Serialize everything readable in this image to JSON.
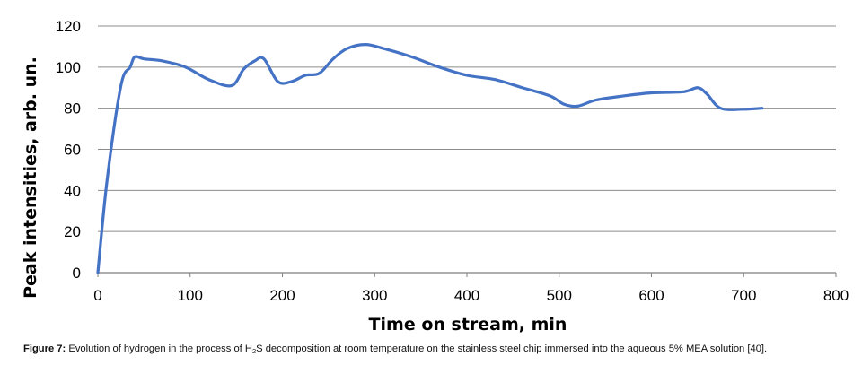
{
  "chart_data": {
    "type": "line",
    "title": "",
    "xlabel": "Time on stream, min",
    "ylabel": "Peak intensities, arb. un.",
    "xlim": [
      0,
      800
    ],
    "ylim": [
      0,
      120
    ],
    "xticks": [
      0,
      100,
      200,
      300,
      400,
      500,
      600,
      700,
      800
    ],
    "yticks": [
      0,
      20,
      40,
      60,
      80,
      100,
      120
    ],
    "grid": "horizontal",
    "legend": "none",
    "line_color": "#4472C4",
    "series": [
      {
        "x": [
          0,
          10,
          25,
          35,
          40,
          50,
          70,
          95,
          120,
          145,
          158,
          170,
          180,
          195,
          210,
          225,
          240,
          255,
          270,
          290,
          310,
          340,
          370,
          400,
          430,
          460,
          490,
          505,
          520,
          540,
          570,
          600,
          635,
          650,
          660,
          675,
          700,
          720
        ],
        "y": [
          0,
          45,
          91,
          100,
          105,
          104,
          103,
          100,
          94,
          91,
          99,
          103,
          104,
          93,
          93,
          96,
          97,
          104,
          109,
          111,
          109,
          105,
          100,
          96,
          94,
          90,
          86,
          82,
          81,
          84,
          86,
          87.5,
          88,
          90,
          87,
          80,
          79.5,
          80
        ]
      }
    ]
  },
  "caption": {
    "label": "Figure 7:",
    "text_before": " Evolution of hydrogen in the process of H",
    "subscript": "2",
    "text_after": "S decomposition at room temperature on the stainless steel chip immersed into the aqueous 5% MEA solution [40]."
  }
}
